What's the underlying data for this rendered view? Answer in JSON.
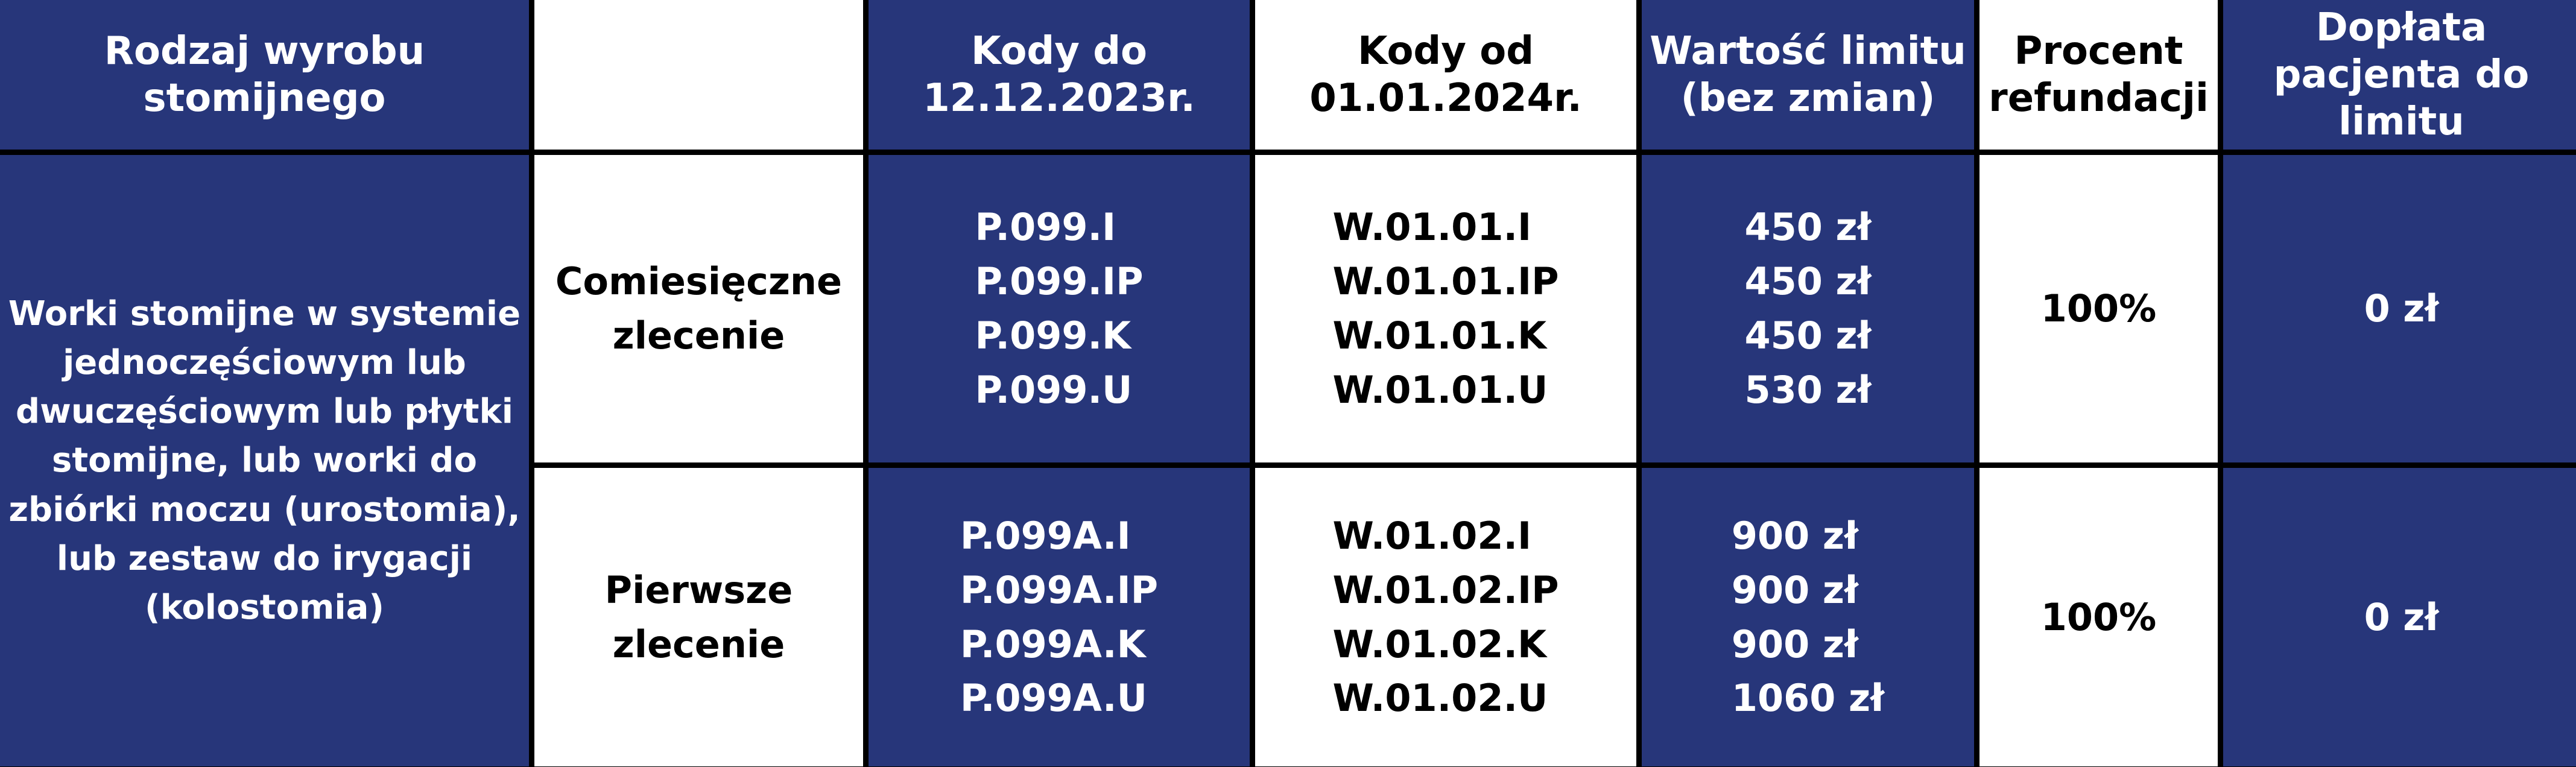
{
  "header": {
    "product_type": "Rodzaj wyrobu stomijnego",
    "order_type": "",
    "codes_old": "Kody do 12.12.2023r.",
    "codes_new": "Kody od 01.01.2024r.",
    "limit_value": "Wartość limitu (bez zmian)",
    "refund_percent": "Procent refundacji",
    "patient_copay": "Dopłata pacjenta do limitu"
  },
  "product_description": "Worki stomijne w systemie jednoczęściowym lub dwuczęściowym lub płytki stomijne, lub worki do zbiórki moczu (urostomia), lub zestaw do irygacji (kolostomia)",
  "rows": [
    {
      "order_type": "Comiesięczne zlecenie",
      "codes_old": [
        "P.099.I",
        "P.099.IP",
        "P.099.K",
        "P.099.U"
      ],
      "codes_new": [
        "W.01.01.I",
        "W.01.01.IP",
        "W.01.01.K",
        "W.01.01.U"
      ],
      "limits": [
        "450 zł",
        "450 zł",
        "450 zł",
        "530 zł"
      ],
      "refund_percent": "100%",
      "patient_copay": "0 zł"
    },
    {
      "order_type": "Pierwsze zlecenie",
      "codes_old": [
        "P.099A.I",
        "P.099A.IP",
        "P.099A.K",
        "P.099A.U"
      ],
      "codes_new": [
        "W.01.02.I",
        "W.01.02.IP",
        "W.01.02.K",
        "W.01.02.U"
      ],
      "limits": [
        "900 zł",
        "900 zł",
        "900 zł",
        "1060 zł"
      ],
      "refund_percent": "100%",
      "patient_copay": "0 zł"
    }
  ],
  "colors": {
    "cell_blue": "#27367a",
    "cell_white": "#ffffff",
    "border": "#000000"
  }
}
